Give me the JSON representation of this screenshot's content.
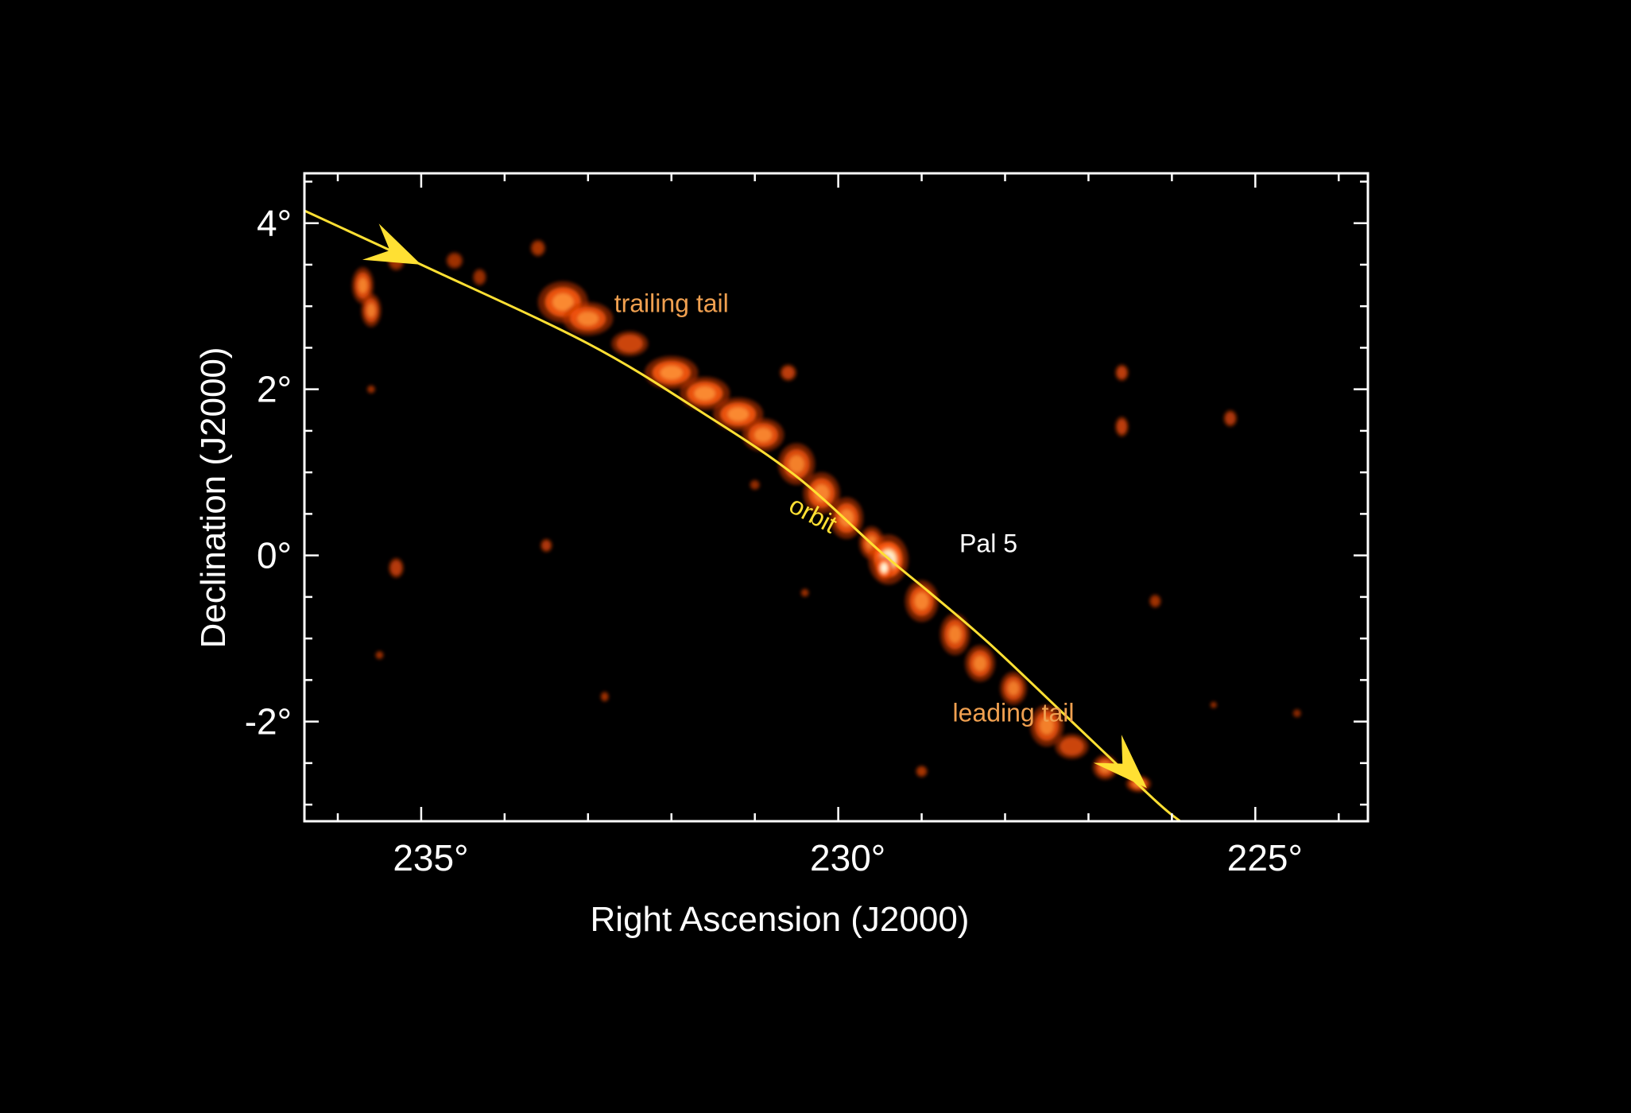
{
  "chart_data": {
    "type": "scatter",
    "xlabel": "Right Ascension (J2000)",
    "ylabel": "Declination (J2000)",
    "xlim": [
      236.4,
      223.65
    ],
    "ylim": [
      -3.2,
      4.6
    ],
    "x_reversed": true,
    "grid": false,
    "background": "#000000",
    "x_ticks": [
      {
        "value": 235,
        "label": "235°"
      },
      {
        "value": 230,
        "label": "230°"
      },
      {
        "value": 225,
        "label": "225°"
      }
    ],
    "y_ticks": [
      {
        "value": 4,
        "label": "4°"
      },
      {
        "value": 2,
        "label": "2°"
      },
      {
        "value": 0,
        "label": "0°"
      },
      {
        "value": -2,
        "label": "-2°"
      }
    ],
    "x_minor_step": 1,
    "y_minor_step": 0.5,
    "orbit": {
      "label": "orbit",
      "color": "#ffe033",
      "points": [
        [
          236.4,
          4.15
        ],
        [
          235.0,
          3.5
        ],
        [
          233.0,
          2.55
        ],
        [
          231.6,
          1.7
        ],
        [
          230.5,
          0.95
        ],
        [
          229.5,
          0.05
        ],
        [
          228.9,
          -0.45
        ],
        [
          228.2,
          -1.05
        ],
        [
          227.2,
          -2.0
        ],
        [
          226.2,
          -2.95
        ],
        [
          225.9,
          -3.2
        ]
      ],
      "arrows": [
        {
          "tip": [
            235.0,
            3.5
          ],
          "from": [
            235.35,
            3.66
          ]
        },
        {
          "tip": [
            226.3,
            -2.8
          ],
          "from": [
            226.7,
            -2.4
          ]
        }
      ]
    },
    "stream": {
      "colors": [
        "#8a1800",
        "#c43400",
        "#ff5a10",
        "#ff9a3c",
        "#ffd08a",
        "#ffffff"
      ],
      "blobs": [
        [
          235.7,
          3.25,
          0.13,
          0.22,
          0.75
        ],
        [
          235.6,
          2.95,
          0.12,
          0.2,
          0.7
        ],
        [
          235.3,
          3.55,
          0.1,
          0.12,
          0.35
        ],
        [
          234.6,
          3.55,
          0.1,
          0.1,
          0.35
        ],
        [
          234.3,
          3.35,
          0.08,
          0.1,
          0.3
        ],
        [
          233.6,
          3.7,
          0.09,
          0.1,
          0.4
        ],
        [
          233.3,
          3.05,
          0.3,
          0.25,
          0.85
        ],
        [
          233.0,
          2.85,
          0.3,
          0.2,
          0.8
        ],
        [
          232.5,
          2.55,
          0.22,
          0.15,
          0.65
        ],
        [
          232.0,
          2.2,
          0.32,
          0.2,
          0.85
        ],
        [
          231.6,
          1.95,
          0.3,
          0.2,
          0.85
        ],
        [
          231.2,
          1.7,
          0.3,
          0.2,
          0.85
        ],
        [
          230.9,
          1.45,
          0.25,
          0.2,
          0.8
        ],
        [
          230.5,
          1.1,
          0.22,
          0.25,
          0.75
        ],
        [
          230.2,
          0.75,
          0.22,
          0.25,
          0.8
        ],
        [
          229.9,
          0.45,
          0.2,
          0.25,
          0.8
        ],
        [
          229.6,
          0.15,
          0.15,
          0.2,
          0.75
        ],
        [
          229.4,
          -0.05,
          0.24,
          0.3,
          0.95
        ],
        [
          229.45,
          -0.15,
          0.11,
          0.16,
          1.0
        ],
        [
          229.0,
          -0.55,
          0.2,
          0.25,
          0.8
        ],
        [
          228.6,
          -0.95,
          0.18,
          0.25,
          0.75
        ],
        [
          228.3,
          -1.3,
          0.18,
          0.22,
          0.75
        ],
        [
          227.9,
          -1.6,
          0.16,
          0.2,
          0.7
        ],
        [
          227.5,
          -2.05,
          0.2,
          0.25,
          0.75
        ],
        [
          227.2,
          -2.3,
          0.2,
          0.15,
          0.65
        ],
        [
          226.8,
          -2.55,
          0.15,
          0.15,
          0.7
        ],
        [
          226.4,
          -2.75,
          0.15,
          0.1,
          0.75
        ],
        [
          230.6,
          2.2,
          0.1,
          0.1,
          0.55
        ],
        [
          226.6,
          2.2,
          0.08,
          0.1,
          0.55
        ],
        [
          226.6,
          1.55,
          0.08,
          0.12,
          0.55
        ],
        [
          225.3,
          1.65,
          0.08,
          0.1,
          0.45
        ],
        [
          235.3,
          -0.15,
          0.09,
          0.12,
          0.5
        ],
        [
          233.5,
          0.12,
          0.07,
          0.08,
          0.45
        ],
        [
          226.2,
          -0.55,
          0.07,
          0.08,
          0.35
        ],
        [
          230.4,
          -0.45,
          0.05,
          0.05,
          0.3
        ],
        [
          229.0,
          -2.6,
          0.07,
          0.07,
          0.4
        ],
        [
          232.8,
          -1.7,
          0.05,
          0.06,
          0.35
        ],
        [
          235.5,
          -1.2,
          0.05,
          0.05,
          0.3
        ],
        [
          225.5,
          -1.8,
          0.04,
          0.04,
          0.3
        ],
        [
          235.6,
          2.0,
          0.05,
          0.05,
          0.3
        ],
        [
          231.0,
          0.85,
          0.06,
          0.06,
          0.25
        ],
        [
          224.5,
          -1.9,
          0.05,
          0.05,
          0.2
        ]
      ]
    },
    "annotations": [
      {
        "text": "trailing tail",
        "x": 232.0,
        "y": 2.93,
        "color": "#f0a050"
      },
      {
        "text": "orbit",
        "x": 230.35,
        "y": 0.4,
        "color": "#ffe033",
        "rotate": 28
      },
      {
        "text": "Pal 5",
        "x": 228.2,
        "y": 0.04,
        "color": "#ffffff"
      },
      {
        "text": "leading tail",
        "x": 227.9,
        "y": -2.0,
        "color": "#f0a050"
      }
    ]
  }
}
